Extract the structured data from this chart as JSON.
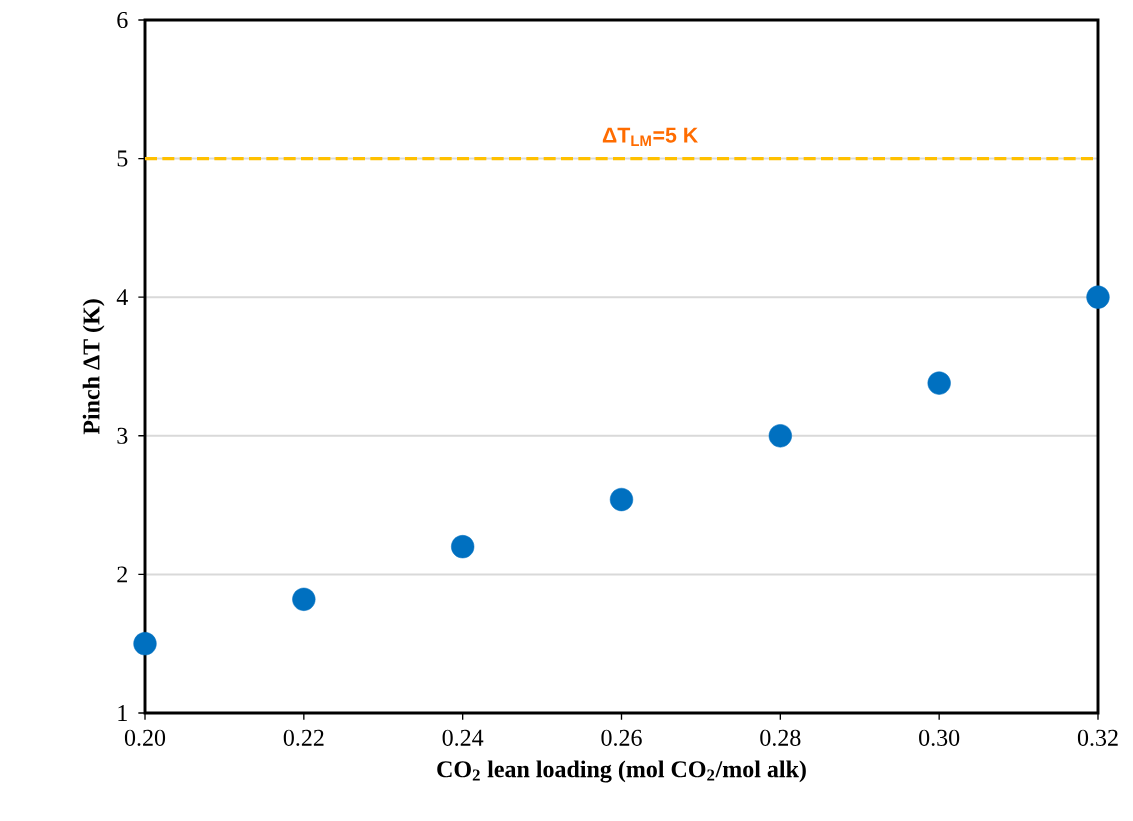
{
  "chart_data": {
    "type": "scatter",
    "xlabel": "CO$_{2}$ lean loading (mol CO$_{2}$/mol alk)",
    "ylabel": "Pinch ΔT (K)",
    "x": [
      0.2,
      0.22,
      0.24,
      0.26,
      0.28,
      0.3,
      0.32
    ],
    "series": [
      {
        "color": "#0070c0",
        "values": [
          1.5,
          1.82,
          2.2,
          2.54,
          3.0,
          3.38,
          4.0
        ]
      }
    ],
    "xlim": [
      0.2,
      0.32
    ],
    "xticks": [
      {
        "value": 0.2,
        "label": "0.20"
      },
      {
        "value": 0.22,
        "label": "0.22"
      },
      {
        "value": 0.24,
        "label": "0.24"
      },
      {
        "value": 0.26,
        "label": "0.26"
      },
      {
        "value": 0.28,
        "label": "0.28"
      },
      {
        "value": 0.3,
        "label": "0.30"
      },
      {
        "value": 0.32,
        "label": "0.32"
      }
    ],
    "ylim": [
      1,
      6
    ],
    "yticks": [
      1,
      2,
      3,
      4,
      5,
      6
    ],
    "ref_lines": [
      {
        "axis": "y",
        "value": 5,
        "label": "ΔT$_{LM}$=5 K",
        "color": "#ffc000",
        "line_style": "dashed"
      }
    ],
    "grid": "y"
  }
}
